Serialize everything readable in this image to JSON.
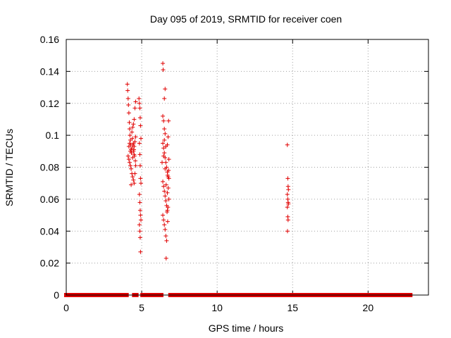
{
  "chart_data": {
    "type": "scatter",
    "title": "Day 095 of 2019, SRMTID for receiver coen",
    "xlabel": "GPS time / hours",
    "ylabel": "SRMTID / TECUs",
    "xlim": [
      0,
      24
    ],
    "ylim": [
      0,
      0.16
    ],
    "xticks": [
      0,
      5,
      10,
      15,
      20
    ],
    "xtick_labels": [
      "0",
      "5",
      "10",
      "15",
      "20"
    ],
    "yticks": [
      0,
      0.02,
      0.04,
      0.06,
      0.08,
      0.1,
      0.12,
      0.14,
      0.16
    ],
    "ytick_labels": [
      "0",
      "0.02",
      "0.04",
      "0.06",
      "0.08",
      "0.1",
      "0.12",
      "0.14",
      "0.16"
    ],
    "grid": true,
    "marker": "+",
    "color": "#e00000",
    "zero_segments": [
      [
        0.0,
        4.0
      ],
      [
        4.5,
        4.65
      ],
      [
        5.05,
        6.3
      ],
      [
        6.9,
        14.6
      ],
      [
        14.85,
        22.8
      ]
    ],
    "points": [
      [
        4.05,
        0.132
      ],
      [
        4.07,
        0.128
      ],
      [
        4.1,
        0.123
      ],
      [
        4.12,
        0.119
      ],
      [
        4.15,
        0.114
      ],
      [
        4.18,
        0.108
      ],
      [
        4.2,
        0.104
      ],
      [
        4.22,
        0.1
      ],
      [
        4.25,
        0.097
      ],
      [
        4.27,
        0.094
      ],
      [
        4.3,
        0.091
      ],
      [
        4.32,
        0.089
      ],
      [
        4.1,
        0.087
      ],
      [
        4.15,
        0.085
      ],
      [
        4.2,
        0.083
      ],
      [
        4.25,
        0.081
      ],
      [
        4.3,
        0.079
      ],
      [
        4.35,
        0.076
      ],
      [
        4.4,
        0.074
      ],
      [
        4.45,
        0.072
      ],
      [
        4.5,
        0.07
      ],
      [
        4.55,
        0.076
      ],
      [
        4.6,
        0.081
      ],
      [
        4.4,
        0.086
      ],
      [
        4.45,
        0.09
      ],
      [
        4.5,
        0.093
      ],
      [
        4.55,
        0.096
      ],
      [
        4.6,
        0.099
      ],
      [
        4.35,
        0.102
      ],
      [
        4.4,
        0.105
      ],
      [
        4.45,
        0.107
      ],
      [
        4.5,
        0.11
      ],
      [
        4.55,
        0.117
      ],
      [
        4.6,
        0.121
      ],
      [
        4.3,
        0.069
      ],
      [
        4.45,
        0.095
      ],
      [
        4.5,
        0.088
      ],
      [
        4.35,
        0.092
      ],
      [
        4.2,
        0.095
      ],
      [
        4.15,
        0.093
      ],
      [
        4.25,
        0.09
      ],
      [
        4.38,
        0.098
      ],
      [
        4.42,
        0.094
      ],
      [
        4.48,
        0.091
      ],
      [
        4.52,
        0.087
      ],
      [
        4.58,
        0.084
      ],
      [
        4.82,
        0.123
      ],
      [
        4.85,
        0.12
      ],
      [
        4.88,
        0.117
      ],
      [
        4.9,
        0.111
      ],
      [
        4.92,
        0.106
      ],
      [
        4.95,
        0.098
      ],
      [
        4.85,
        0.095
      ],
      [
        4.88,
        0.088
      ],
      [
        4.9,
        0.081
      ],
      [
        4.92,
        0.073
      ],
      [
        4.95,
        0.07
      ],
      [
        4.85,
        0.063
      ],
      [
        4.88,
        0.058
      ],
      [
        4.9,
        0.053
      ],
      [
        4.92,
        0.05
      ],
      [
        4.95,
        0.047
      ],
      [
        4.85,
        0.044
      ],
      [
        4.88,
        0.04
      ],
      [
        4.9,
        0.036
      ],
      [
        4.92,
        0.027
      ],
      [
        6.4,
        0.145
      ],
      [
        6.42,
        0.141
      ],
      [
        6.55,
        0.129
      ],
      [
        6.5,
        0.123
      ],
      [
        6.4,
        0.112
      ],
      [
        6.45,
        0.109
      ],
      [
        6.5,
        0.104
      ],
      [
        6.55,
        0.101
      ],
      [
        6.4,
        0.095
      ],
      [
        6.45,
        0.092
      ],
      [
        6.5,
        0.089
      ],
      [
        6.55,
        0.086
      ],
      [
        6.6,
        0.083
      ],
      [
        6.65,
        0.08
      ],
      [
        6.7,
        0.077
      ],
      [
        6.75,
        0.074
      ],
      [
        6.4,
        0.071
      ],
      [
        6.45,
        0.068
      ],
      [
        6.5,
        0.065
      ],
      [
        6.55,
        0.062
      ],
      [
        6.6,
        0.059
      ],
      [
        6.65,
        0.056
      ],
      [
        6.7,
        0.053
      ],
      [
        6.4,
        0.05
      ],
      [
        6.45,
        0.047
      ],
      [
        6.5,
        0.044
      ],
      [
        6.55,
        0.041
      ],
      [
        6.6,
        0.037
      ],
      [
        6.65,
        0.034
      ],
      [
        6.62,
        0.023
      ],
      [
        6.78,
        0.109
      ],
      [
        6.75,
        0.099
      ],
      [
        6.7,
        0.094
      ],
      [
        6.8,
        0.085
      ],
      [
        6.78,
        0.078
      ],
      [
        6.72,
        0.075
      ],
      [
        6.8,
        0.073
      ],
      [
        6.76,
        0.067
      ],
      [
        6.7,
        0.064
      ],
      [
        6.8,
        0.06
      ],
      [
        6.74,
        0.055
      ],
      [
        6.68,
        0.052
      ],
      [
        6.72,
        0.046
      ],
      [
        6.5,
        0.097
      ],
      [
        6.6,
        0.093
      ],
      [
        6.45,
        0.087
      ],
      [
        6.35,
        0.083
      ],
      [
        6.55,
        0.079
      ],
      [
        6.62,
        0.069
      ],
      [
        14.65,
        0.094
      ],
      [
        14.68,
        0.073
      ],
      [
        14.7,
        0.068
      ],
      [
        14.72,
        0.066
      ],
      [
        14.65,
        0.063
      ],
      [
        14.68,
        0.06
      ],
      [
        14.7,
        0.058
      ],
      [
        14.72,
        0.057
      ],
      [
        14.65,
        0.055
      ],
      [
        14.68,
        0.049
      ],
      [
        14.7,
        0.047
      ],
      [
        14.66,
        0.04
      ]
    ]
  }
}
